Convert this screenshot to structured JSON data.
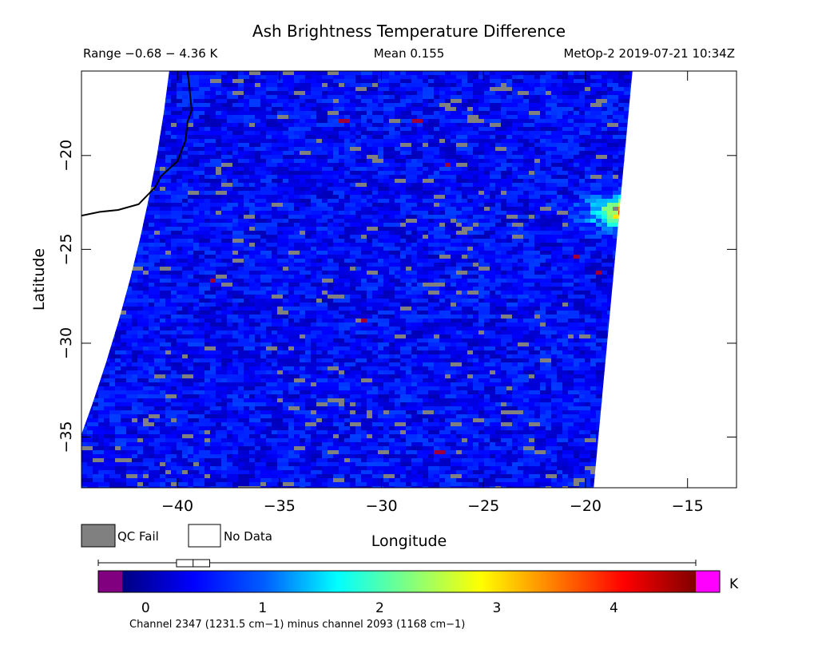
{
  "header": {
    "title": "Ash Brightness Temperature Difference",
    "range_text": "Range −0.68 − 4.36 K",
    "mean_text": "Mean 0.155",
    "source_text": "MetOp-2 2019-07-21 10:34Z"
  },
  "legend": {
    "qc_fail_label": "QC Fail",
    "no_data_label": "No Data",
    "qc_fail_color": "#808080",
    "no_data_color": "#ffffff"
  },
  "colorbar": {
    "unit": "K",
    "ticks": [
      "0",
      "1",
      "2",
      "3",
      "4"
    ],
    "tick_values": [
      0,
      1,
      2,
      3,
      4
    ],
    "range": [
      -0.68,
      4.36
    ],
    "under_color": "#800080",
    "over_color": "#ff00ff",
    "caption": "Channel 2347 (1231.5 cm−1) minus channel 2093 (1168 cm−1)",
    "boxplot": {
      "min": -0.68,
      "q1": -0.02,
      "median": 0.12,
      "q3": 0.26,
      "max": 4.36
    }
  },
  "chart_data": {
    "type": "heatmap",
    "title": "Ash Brightness Temperature Difference",
    "xlabel": "Longitude",
    "ylabel": "Latitude",
    "xlim": [
      -44.7,
      -12.6
    ],
    "ylim": [
      -37.7,
      -15.5
    ],
    "xticks": [
      -40,
      -35,
      -30,
      -25,
      -20,
      -15
    ],
    "xtick_labels": [
      "−40",
      "−35",
      "−30",
      "−25",
      "−20",
      "−15"
    ],
    "yticks": [
      -20,
      -25,
      -30,
      -35
    ],
    "ytick_labels": [
      "−20",
      "−25",
      "−30",
      "−35"
    ],
    "value_range": [
      -0.68,
      4.36
    ],
    "mean": 0.155,
    "background_value": 0.3,
    "swath": {
      "west_edge_lon": [
        [
          -15.5,
          -40.4
        ],
        [
          -37.7,
          -45.7
        ]
      ],
      "east_edge_lon": [
        [
          -15.5,
          -17.7
        ],
        [
          -37.7,
          -19.6
        ]
      ]
    },
    "plume": {
      "center_lon": -17.0,
      "center_lat": -23.0,
      "peak_value": 4.3,
      "extent_lon": [
        -21.0,
        -16.2
      ],
      "extent_lat": [
        -24.3,
        -21.3
      ]
    },
    "coastline": [
      [
        -39.5,
        -15.5
      ],
      [
        -39.4,
        -16.5
      ],
      [
        -39.3,
        -17.6
      ],
      [
        -39.5,
        -18.2
      ],
      [
        -39.6,
        -19.2
      ],
      [
        -40.0,
        -20.3
      ],
      [
        -40.8,
        -21.1
      ],
      [
        -41.1,
        -21.7
      ],
      [
        -41.9,
        -22.6
      ],
      [
        -42.9,
        -22.9
      ],
      [
        -43.8,
        -23.0
      ],
      [
        -44.7,
        -23.2
      ]
    ]
  }
}
